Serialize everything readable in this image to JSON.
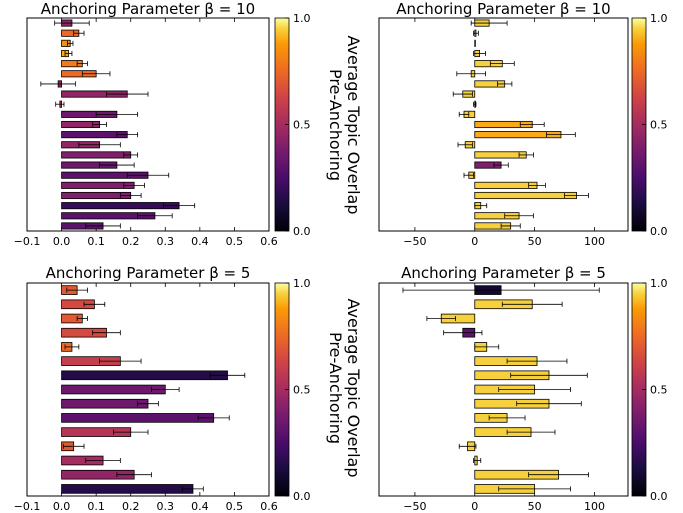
{
  "chart_data": [
    {
      "type": "bar",
      "orientation": "horizontal",
      "title": "Anchoring Parameter β = 10",
      "xlim": [
        -0.1,
        0.6
      ],
      "xticks": [
        "−0.1",
        "0.0",
        "0.1",
        "0.2",
        "0.3",
        "0.4",
        "0.5",
        "0.6"
      ],
      "xtick_values": [
        -0.1,
        0.0,
        0.1,
        0.2,
        0.3,
        0.4,
        0.5,
        0.6
      ],
      "values": [
        0.03,
        0.05,
        0.025,
        0.02,
        0.06,
        0.1,
        -0.01,
        0.19,
        -0.005,
        0.16,
        0.11,
        0.19,
        0.11,
        0.2,
        0.16,
        0.25,
        0.21,
        0.2,
        0.34,
        0.27,
        0.12
      ],
      "errors": [
        0.05,
        0.015,
        0.008,
        0.01,
        0.015,
        0.04,
        0.05,
        0.06,
        0.012,
        0.06,
        0.02,
        0.03,
        0.06,
        0.02,
        0.05,
        0.06,
        0.03,
        0.03,
        0.045,
        0.05,
        0.05
      ],
      "colors": [
        0.45,
        0.75,
        0.85,
        0.9,
        0.8,
        0.75,
        0.45,
        0.45,
        0.6,
        0.35,
        0.45,
        0.3,
        0.45,
        0.4,
        0.35,
        0.3,
        0.4,
        0.4,
        0.2,
        0.3,
        0.3
      ],
      "colorbar": {
        "ticks": [
          "0.0",
          "0.5",
          "1.0"
        ],
        "tick_values": [
          0.0,
          0.5,
          1.0
        ],
        "label_lines": [
          "Average Topic Overlap",
          "Pre-Anchoring"
        ]
      }
    },
    {
      "type": "bar",
      "orientation": "horizontal",
      "title": "Anchoring Parameter β = 10",
      "xlim": [
        -80,
        128
      ],
      "xticks": [
        "−50",
        "0",
        "50",
        "100"
      ],
      "xtick_values": [
        -50,
        0,
        50,
        100
      ],
      "values": [
        12,
        1,
        0,
        4,
        23,
        -3,
        25,
        -10,
        0,
        -9,
        48,
        72,
        -8,
        43,
        22,
        -5,
        52,
        85,
        5,
        37,
        30
      ],
      "errors": [
        15,
        2,
        0,
        5,
        10,
        12,
        6,
        8,
        1,
        4,
        10,
        12,
        6,
        6,
        6,
        4,
        7,
        10,
        5,
        12,
        8
      ],
      "colors": [
        0.95,
        0.95,
        0.95,
        0.95,
        0.95,
        0.95,
        0.95,
        0.95,
        0.95,
        0.95,
        0.9,
        0.9,
        0.95,
        0.95,
        0.4,
        0.95,
        0.95,
        0.95,
        0.95,
        0.95,
        0.95
      ],
      "colorbar": {
        "ticks": [
          "0.0",
          "0.5",
          "1.0"
        ],
        "tick_values": [
          0.0,
          0.5,
          1.0
        ],
        "label_lines": []
      }
    },
    {
      "type": "bar",
      "orientation": "horizontal",
      "title": "Anchoring Parameter β = 5",
      "xlim": [
        -0.1,
        0.6
      ],
      "xticks": [
        "−0.1",
        "0.0",
        "0.1",
        "0.2",
        "0.3",
        "0.4",
        "0.5",
        "0.6"
      ],
      "xtick_values": [
        -0.1,
        0.0,
        0.1,
        0.2,
        0.3,
        0.4,
        0.5,
        0.6
      ],
      "values": [
        0.045,
        0.095,
        0.06,
        0.13,
        0.03,
        0.17,
        0.48,
        0.3,
        0.25,
        0.44,
        0.2,
        0.035,
        0.12,
        0.21,
        0.38
      ],
      "errors": [
        0.03,
        0.03,
        0.015,
        0.04,
        0.02,
        0.06,
        0.05,
        0.04,
        0.03,
        0.045,
        0.05,
        0.03,
        0.05,
        0.05,
        0.03
      ],
      "colors": [
        0.7,
        0.65,
        0.7,
        0.65,
        0.75,
        0.6,
        0.15,
        0.35,
        0.35,
        0.3,
        0.55,
        0.7,
        0.5,
        0.45,
        0.15
      ],
      "colorbar": {
        "ticks": [
          "0.0",
          "0.5",
          "1.0"
        ],
        "tick_values": [
          0.0,
          0.5,
          1.0
        ],
        "label_lines": [
          "Average Topic Overlap",
          "Pre-Anchoring"
        ]
      }
    },
    {
      "type": "bar",
      "orientation": "horizontal",
      "title": "Anchoring Parameter β = 5",
      "xlim": [
        -80,
        128
      ],
      "xticks": [
        "−50",
        "0",
        "50",
        "100"
      ],
      "xtick_values": [
        -50,
        0,
        50,
        100
      ],
      "values": [
        22,
        48,
        -28,
        -10,
        10,
        52,
        62,
        50,
        62,
        27,
        47,
        -6,
        2,
        70,
        50
      ],
      "errors": [
        82,
        25,
        12,
        16,
        10,
        25,
        32,
        30,
        27,
        15,
        20,
        7,
        3,
        25,
        30
      ],
      "colors": [
        0.1,
        0.95,
        0.95,
        0.3,
        0.95,
        0.95,
        0.95,
        0.95,
        0.95,
        0.95,
        0.95,
        0.95,
        0.95,
        0.95,
        0.95
      ],
      "colorbar": {
        "ticks": [
          "0.0",
          "0.5",
          "1.0"
        ],
        "tick_values": [
          0.0,
          0.5,
          1.0
        ],
        "label_lines": []
      }
    }
  ]
}
